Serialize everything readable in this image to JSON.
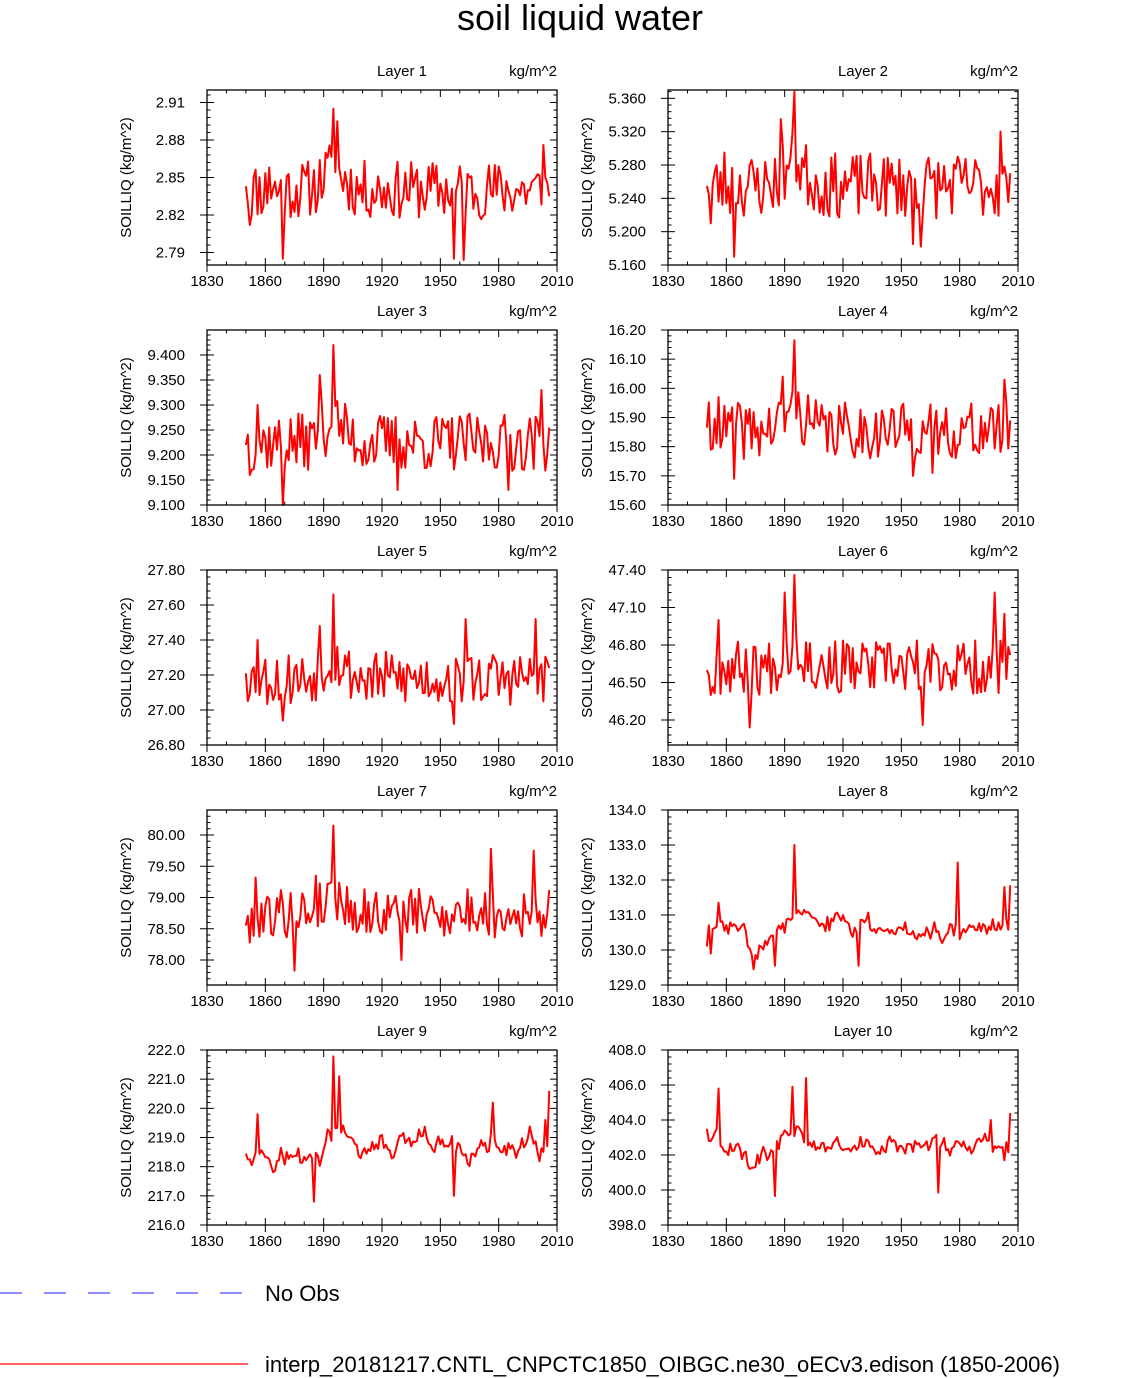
{
  "title": "soil liquid water",
  "legend": {
    "items": [
      {
        "label": "No Obs",
        "color": "#4a4aff",
        "style": "dashed"
      },
      {
        "label": "interp_20181217.CNTL_CNPCTC1850_OIBGC.ne30_oECv3.edison (1850-2006)",
        "color": "#ff0000",
        "style": "solid"
      }
    ]
  },
  "colors": {
    "series": "#ff0000",
    "axis": "#000000"
  },
  "chart_data": [
    {
      "type": "line",
      "title": "Layer 1",
      "units": "kg/m^2",
      "ylabel": "SOILLIQ  (kg/m^2)",
      "xlim": [
        1830,
        2010
      ],
      "xticks": [
        "1830",
        "1860",
        "1890",
        "1920",
        "1950",
        "1980",
        "2010"
      ],
      "ylim": [
        2.78,
        2.92
      ],
      "yticks": [
        "2.79",
        "2.82",
        "2.85",
        "2.88",
        "2.91"
      ],
      "x_start": 1850,
      "x_end": 2006,
      "profile": "flat",
      "base": 2.84,
      "amp": 0.018,
      "seed": 11,
      "key_points": [
        [
          1850,
          2.843
        ],
        [
          1852,
          2.812
        ],
        [
          1862,
          2.858
        ],
        [
          1869,
          2.785
        ],
        [
          1895,
          2.905
        ],
        [
          1897,
          2.895
        ],
        [
          1957,
          2.785
        ],
        [
          1962,
          2.784
        ],
        [
          2003,
          2.876
        ],
        [
          2006,
          2.835
        ]
      ]
    },
    {
      "type": "line",
      "title": "Layer 2",
      "units": "kg/m^2",
      "ylabel": "SOILLIQ  (kg/m^2)",
      "xlim": [
        1830,
        2010
      ],
      "xticks": [
        "1830",
        "1860",
        "1890",
        "1920",
        "1950",
        "1980",
        "2010"
      ],
      "ylim": [
        5.16,
        5.37
      ],
      "yticks": [
        "5.160",
        "5.200",
        "5.240",
        "5.280",
        "5.320",
        "5.360"
      ],
      "x_start": 1850,
      "x_end": 2006,
      "profile": "flat",
      "base": 5.255,
      "amp": 0.03,
      "seed": 23,
      "key_points": [
        [
          1850,
          5.255
        ],
        [
          1852,
          5.21
        ],
        [
          1859,
          5.295
        ],
        [
          1864,
          5.17
        ],
        [
          1895,
          5.368
        ],
        [
          1888,
          5.335
        ],
        [
          1956,
          5.185
        ],
        [
          1960,
          5.182
        ],
        [
          2001,
          5.32
        ],
        [
          2006,
          5.27
        ]
      ]
    },
    {
      "type": "line",
      "title": "Layer 3",
      "units": "kg/m^2",
      "ylabel": "SOILLIQ  (kg/m^2)",
      "xlim": [
        1830,
        2010
      ],
      "xticks": [
        "1830",
        "1860",
        "1890",
        "1920",
        "1950",
        "1980",
        "2010"
      ],
      "ylim": [
        9.1,
        9.45
      ],
      "yticks": [
        "9.100",
        "9.150",
        "9.200",
        "9.250",
        "9.300",
        "9.350",
        "9.400"
      ],
      "x_start": 1850,
      "x_end": 2006,
      "profile": "flat",
      "base": 9.225,
      "amp": 0.045,
      "seed": 37,
      "key_points": [
        [
          1850,
          9.22
        ],
        [
          1852,
          9.16
        ],
        [
          1856,
          9.3
        ],
        [
          1869,
          9.1
        ],
        [
          1895,
          9.42
        ],
        [
          1888,
          9.36
        ],
        [
          1928,
          9.13
        ],
        [
          1985,
          9.13
        ],
        [
          2002,
          9.33
        ],
        [
          2006,
          9.255
        ]
      ]
    },
    {
      "type": "line",
      "title": "Layer 4",
      "units": "kg/m^2",
      "ylabel": "SOILLIQ  (kg/m^2)",
      "xlim": [
        1830,
        2010
      ],
      "xticks": [
        "1830",
        "1860",
        "1890",
        "1920",
        "1950",
        "1980",
        "2010"
      ],
      "ylim": [
        15.6,
        16.2
      ],
      "yticks": [
        "15.60",
        "15.70",
        "15.80",
        "15.90",
        "16.00",
        "16.10",
        "16.20"
      ],
      "x_start": 1850,
      "x_end": 2006,
      "profile": "flat",
      "base": 15.855,
      "amp": 0.075,
      "seed": 41,
      "key_points": [
        [
          1850,
          15.865
        ],
        [
          1852,
          15.79
        ],
        [
          1856,
          15.97
        ],
        [
          1864,
          15.69
        ],
        [
          1895,
          16.165
        ],
        [
          1889,
          16.04
        ],
        [
          1956,
          15.7
        ],
        [
          1966,
          15.71
        ],
        [
          2003,
          16.03
        ],
        [
          2006,
          15.89
        ]
      ]
    },
    {
      "type": "line",
      "title": "Layer 5",
      "units": "kg/m^2",
      "ylabel": "SOILLIQ  (kg/m^2)",
      "xlim": [
        1830,
        2010
      ],
      "xticks": [
        "1830",
        "1860",
        "1890",
        "1920",
        "1950",
        "1980",
        "2010"
      ],
      "ylim": [
        26.8,
        27.8
      ],
      "yticks": [
        "26.80",
        "27.00",
        "27.20",
        "27.40",
        "27.60",
        "27.80"
      ],
      "x_start": 1850,
      "x_end": 2006,
      "profile": "flat",
      "base": 27.18,
      "amp": 0.12,
      "seed": 53,
      "key_points": [
        [
          1850,
          27.21
        ],
        [
          1852,
          27.09
        ],
        [
          1856,
          27.4
        ],
        [
          1869,
          26.94
        ],
        [
          1895,
          27.66
        ],
        [
          1888,
          27.48
        ],
        [
          1957,
          26.92
        ],
        [
          1963,
          27.52
        ],
        [
          1999,
          27.52
        ],
        [
          2006,
          27.24
        ]
      ]
    },
    {
      "type": "line",
      "title": "Layer 6",
      "units": "kg/m^2",
      "ylabel": "SOILLIQ  (kg/m^2)",
      "xlim": [
        1830,
        2010
      ],
      "xticks": [
        "1830",
        "1860",
        "1890",
        "1920",
        "1950",
        "1980",
        "2010"
      ],
      "ylim": [
        46.0,
        47.4
      ],
      "yticks": [
        "46.20",
        "46.50",
        "46.80",
        "47.10",
        "47.40"
      ],
      "x_start": 1850,
      "x_end": 2006,
      "profile": "flat",
      "base": 46.62,
      "amp": 0.17,
      "seed": 67,
      "key_points": [
        [
          1850,
          46.6
        ],
        [
          1852,
          46.4
        ],
        [
          1856,
          47.0
        ],
        [
          1872,
          46.14
        ],
        [
          1895,
          47.36
        ],
        [
          1890,
          47.22
        ],
        [
          1961,
          46.16
        ],
        [
          1998,
          47.22
        ],
        [
          2003,
          47.05
        ],
        [
          2006,
          46.72
        ]
      ]
    },
    {
      "type": "line",
      "title": "Layer 7",
      "units": "kg/m^2",
      "ylabel": "SOILLIQ  (kg/m^2)",
      "xlim": [
        1830,
        2010
      ],
      "xticks": [
        "1830",
        "1860",
        "1890",
        "1920",
        "1950",
        "1980",
        "2010"
      ],
      "ylim": [
        77.6,
        80.4
      ],
      "yticks": [
        "78.00",
        "78.50",
        "79.00",
        "79.50",
        "80.00"
      ],
      "x_start": 1850,
      "x_end": 2006,
      "profile": "flat",
      "base": 78.75,
      "amp": 0.3,
      "seed": 79,
      "key_points": [
        [
          1850,
          78.55
        ],
        [
          1852,
          78.28
        ],
        [
          1855,
          79.32
        ],
        [
          1875,
          77.83
        ],
        [
          1895,
          80.15
        ],
        [
          1886,
          79.35
        ],
        [
          1930,
          78.0
        ],
        [
          1976,
          79.78
        ],
        [
          1998,
          79.75
        ],
        [
          2006,
          79.12
        ]
      ]
    },
    {
      "type": "line",
      "title": "Layer 8",
      "units": "kg/m^2",
      "ylabel": "SOILLIQ  (kg/m^2)",
      "xlim": [
        1830,
        2010
      ],
      "xticks": [
        "1830",
        "1860",
        "1890",
        "1920",
        "1950",
        "1980",
        "2010"
      ],
      "ylim": [
        129.0,
        134.0
      ],
      "yticks": [
        "129.0",
        "130.0",
        "131.0",
        "132.0",
        "133.0",
        "134.0"
      ],
      "x_start": 1850,
      "x_end": 2006,
      "profile": "slow",
      "base": 130.65,
      "amp": 0.35,
      "seed": 83,
      "key_points": [
        [
          1850,
          130.1
        ],
        [
          1852,
          129.9
        ],
        [
          1856,
          131.35
        ],
        [
          1874,
          129.45
        ],
        [
          1895,
          133.0
        ],
        [
          1885,
          129.55
        ],
        [
          1928,
          129.55
        ],
        [
          1979,
          132.5
        ],
        [
          2003,
          131.8
        ],
        [
          2006,
          131.85
        ]
      ]
    },
    {
      "type": "line",
      "title": "Layer 9",
      "units": "kg/m^2",
      "ylabel": "SOILLIQ  (kg/m^2)",
      "xlim": [
        1830,
        2010
      ],
      "xticks": [
        "1830",
        "1860",
        "1890",
        "1920",
        "1950",
        "1980",
        "2010"
      ],
      "ylim": [
        216.0,
        222.0
      ],
      "yticks": [
        "216.0",
        "217.0",
        "218.0",
        "219.0",
        "220.0",
        "221.0",
        "222.0"
      ],
      "x_start": 1850,
      "x_end": 2006,
      "profile": "slow",
      "base": 218.6,
      "amp": 0.5,
      "seed": 97,
      "key_points": [
        [
          1850,
          218.45
        ],
        [
          1852,
          218.25
        ],
        [
          1856,
          219.8
        ],
        [
          1885,
          216.8
        ],
        [
          1895,
          221.78
        ],
        [
          1898,
          221.1
        ],
        [
          1957,
          217.0
        ],
        [
          1977,
          220.2
        ],
        [
          2004,
          219.6
        ],
        [
          2006,
          220.6
        ]
      ]
    },
    {
      "type": "line",
      "title": "Layer 10",
      "units": "kg/m^2",
      "ylabel": "SOILLIQ  (kg/m^2)",
      "xlim": [
        1830,
        2010
      ],
      "xticks": [
        "1830",
        "1860",
        "1890",
        "1920",
        "1950",
        "1980",
        "2010"
      ],
      "ylim": [
        398.0,
        408.0
      ],
      "yticks": [
        "398.0",
        "400.0",
        "402.0",
        "404.0",
        "406.0",
        "408.0"
      ],
      "x_start": 1850,
      "x_end": 2006,
      "profile": "slow",
      "base": 402.6,
      "amp": 0.7,
      "seed": 101,
      "key_points": [
        [
          1850,
          403.5
        ],
        [
          1852,
          402.8
        ],
        [
          1856,
          405.8
        ],
        [
          1885,
          399.65
        ],
        [
          1901,
          406.4
        ],
        [
          1894,
          405.9
        ],
        [
          1969,
          399.85
        ],
        [
          1996,
          404.0
        ],
        [
          2003,
          401.7
        ],
        [
          2006,
          404.4
        ]
      ]
    }
  ]
}
